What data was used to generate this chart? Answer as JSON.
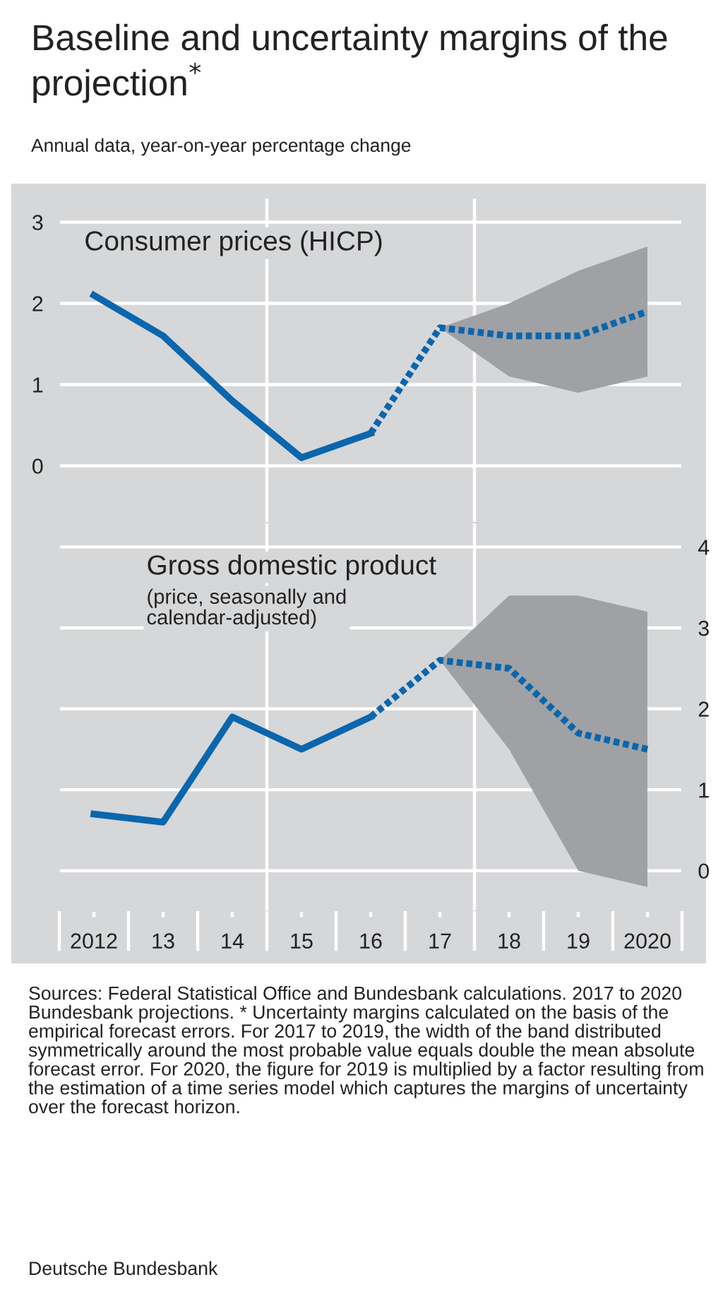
{
  "chart_data": [
    {
      "type": "other",
      "title": "Baseline and uncertainty margins of the projection$^{*}$",
      "subtitle": "Annual data, year-on-year percentage change",
      "annotations": [
        "Sources: Federal Statistical Office and Bundesbank calculations. 2017 to 2020 Bundesbank projections. * Uncertainty margins calculated on the basis of the empirical forecast errors. For 2017 to 2019, the width of the band distributed symmetrically around the most probable value equals double the mean absolute forecast error. For 2020, the figure for 2019 is multiplied by a factor resulting from the estimation of a time series model which captures the margins of uncertainty over the forecast horizon.",
        "Deutsche Bundesbank"
      ]
    },
    {
      "type": "line",
      "title": "Consumer prices (HICP)",
      "x": [
        2012,
        2013,
        2014,
        2015,
        2016
      ],
      "series": [
        {
          "color": "#0a66ad",
          "line_style": "solid",
          "values": [
            2.1,
            1.6,
            0.8,
            0.1,
            0.4
          ]
        },
        {
          "color": "#0a66ad",
          "line_style": "dotted",
          "x": [
            2016,
            2017,
            2018,
            2019,
            2020
          ],
          "values": [
            0.4,
            1.7,
            1.6,
            1.6,
            1.9
          ],
          "lower": [
            null,
            1.7,
            1.1,
            0.9,
            1.1
          ],
          "upper": [
            null,
            1.7,
            2.0,
            2.4,
            2.7
          ]
        }
      ],
      "xlim": [
        2011.5,
        2020.5
      ],
      "ylim": [
        -0.7,
        3.3
      ],
      "yticks": [
        0,
        1,
        2,
        3
      ],
      "tick_labels": "y",
      "grid": "y",
      "ref_lines": [
        {
          "axis": "x",
          "value": 2014.5,
          "color": "#ffffff"
        },
        {
          "axis": "x",
          "value": 2017.5,
          "color": "#ffffff"
        }
      ]
    },
    {
      "type": "line",
      "title": "Gross domestic product",
      "subtitle": "(price, seasonally and calendar-adjusted)",
      "x": [
        2012,
        2013,
        2014,
        2015,
        2016
      ],
      "series": [
        {
          "color": "#0a66ad",
          "line_style": "solid",
          "axis": "y2",
          "values": [
            0.7,
            0.6,
            1.9,
            1.5,
            1.9
          ]
        },
        {
          "color": "#0a66ad",
          "line_style": "dotted",
          "axis": "y2",
          "x": [
            2016,
            2017,
            2018,
            2019,
            2020
          ],
          "values": [
            1.9,
            2.6,
            2.5,
            1.7,
            1.5
          ],
          "lower": [
            null,
            2.6,
            1.5,
            0.0,
            -0.2
          ],
          "upper": [
            null,
            2.6,
            3.4,
            3.4,
            3.2
          ]
        }
      ],
      "xlim": [
        2011.5,
        2020.5
      ],
      "y2lim": [
        -0.5,
        4.3
      ],
      "y2ticks": [
        0,
        1,
        2,
        3,
        4
      ],
      "xticks": [
        {
          "value": 2012,
          "label": "2012"
        },
        {
          "value": 2013,
          "label": "13"
        },
        {
          "value": 2014,
          "label": "14"
        },
        {
          "value": 2015,
          "label": "15"
        },
        {
          "value": 2016,
          "label": "16"
        },
        {
          "value": 2017,
          "label": "17"
        },
        {
          "value": 2018,
          "label": "18"
        },
        {
          "value": 2019,
          "label": "19"
        },
        {
          "value": 2020,
          "label": "2020"
        }
      ],
      "grid": "y",
      "ref_lines": [
        {
          "axis": "x",
          "value": 2014.5,
          "color": "#ffffff"
        },
        {
          "axis": "x",
          "value": 2017.5,
          "color": "#ffffff"
        }
      ]
    }
  ]
}
